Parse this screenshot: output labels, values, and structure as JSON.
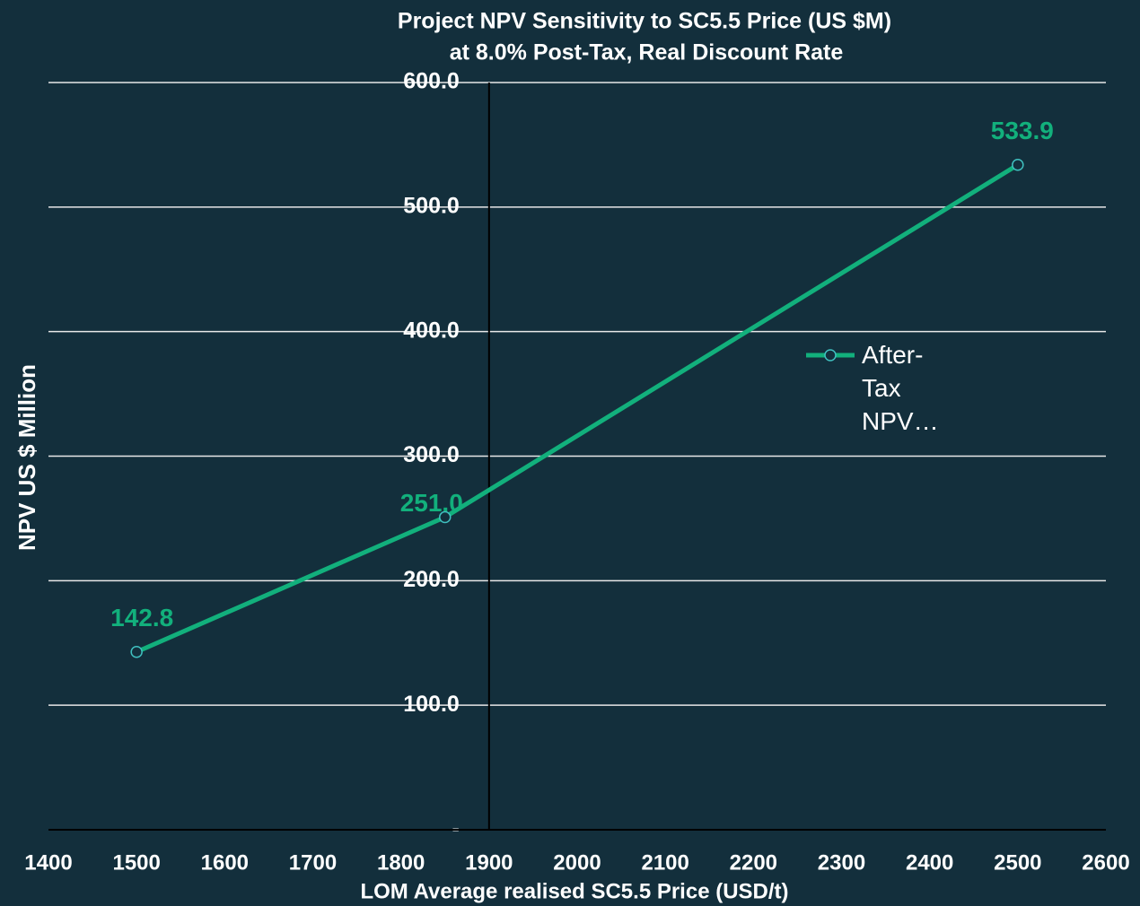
{
  "chart_data": {
    "type": "line",
    "title": "Project NPV Sensitivity to SC5.5 Price (US $M)",
    "subtitle": "at 8.0% Post-Tax, Real Discount Rate",
    "x_label": "LOM Average realised SC5.5 Price (USD/t)",
    "y_label": "NPV  US $ Million",
    "x": [
      1500,
      1850,
      2500
    ],
    "series": [
      {
        "name": "After-Tax NPV…",
        "color": "#12b07c",
        "values": [
          142.8,
          251.0,
          533.9
        ],
        "value_labels": [
          "142.8",
          "251.0",
          "533.9"
        ]
      }
    ],
    "xlim": [
      1400,
      2600
    ],
    "xticks": [
      1400,
      1500,
      1600,
      1700,
      1800,
      1900,
      2000,
      2100,
      2200,
      2300,
      2400,
      2500,
      2600
    ],
    "ylim": [
      0,
      600
    ],
    "yticks": [
      {
        "value": 0,
        "label": "-"
      },
      {
        "value": 100,
        "label": "100.0"
      },
      {
        "value": 200,
        "label": "200.0"
      },
      {
        "value": 300,
        "label": "300.0"
      },
      {
        "value": 400,
        "label": "400.0"
      },
      {
        "value": 500,
        "label": "500.0"
      },
      {
        "value": 600,
        "label": "600.0"
      }
    ],
    "y_axis_crosses_x": 1900,
    "grid": true,
    "legend": "right"
  }
}
